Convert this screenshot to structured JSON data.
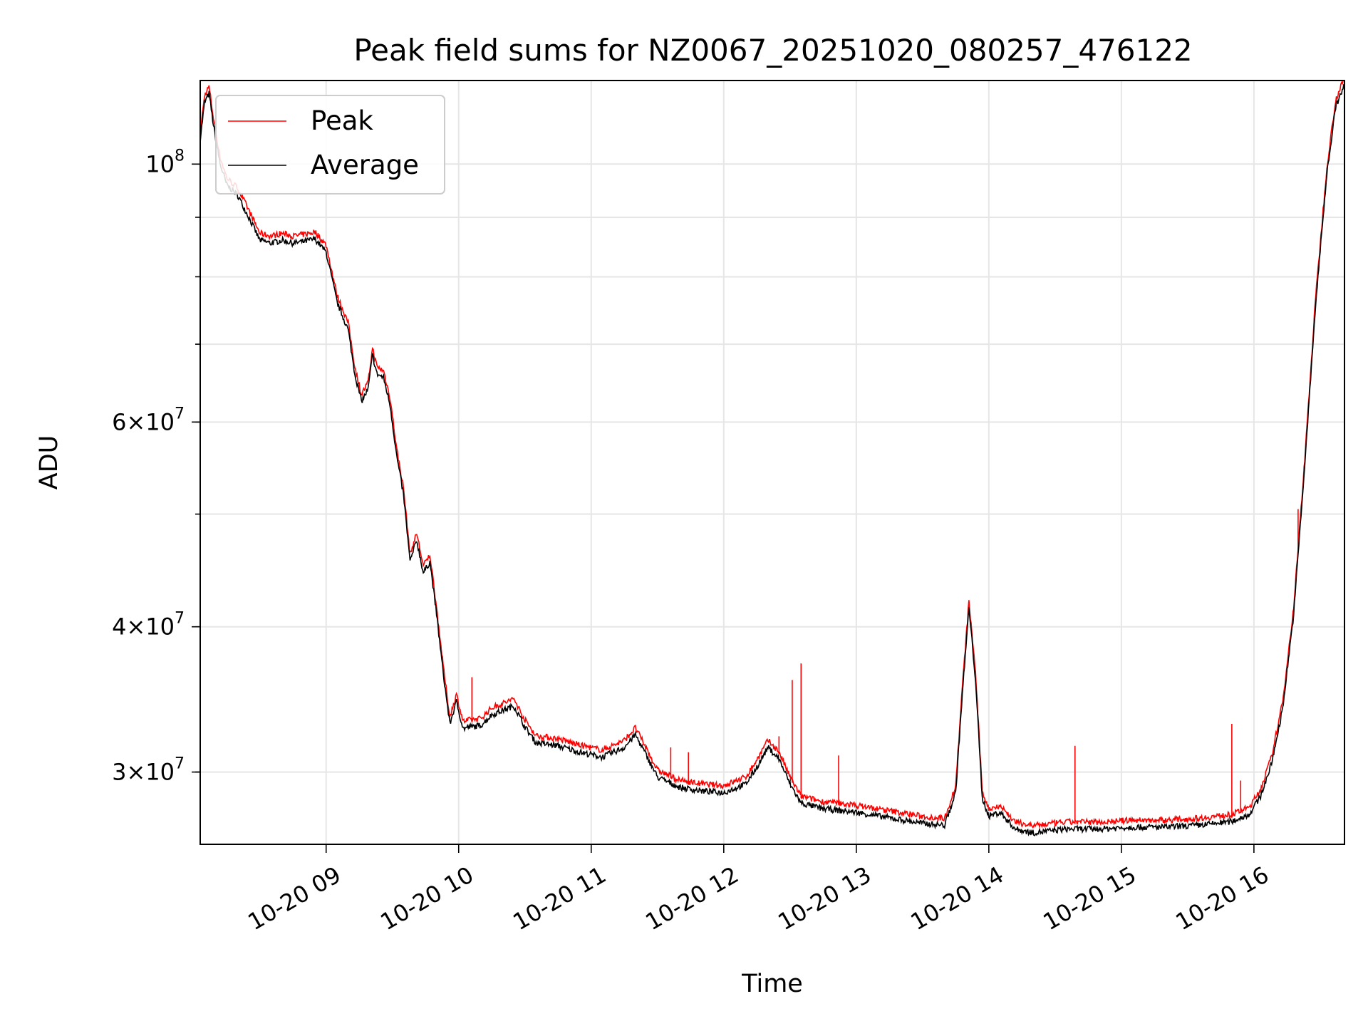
{
  "chart_data": {
    "type": "line",
    "title": "Peak field sums for NZ0067_20251020_080257_476122",
    "xlabel": "Time",
    "ylabel": "ADU",
    "xlim": [
      "10-20 08:03",
      "10-20 16:41"
    ],
    "ylim": [
      26000000,
      118000000
    ],
    "yscale": "log",
    "grid": true,
    "legend_position": "top-left",
    "x_tick_labels": [
      "10-20 09",
      "10-20 10",
      "10-20 11",
      "10-20 12",
      "10-20 13",
      "10-20 14",
      "10-20 15",
      "10-20 16"
    ],
    "y_tick_labels": [
      {
        "value": 30000000,
        "mantissa": "3",
        "base": "10",
        "exp": "7"
      },
      {
        "value": 40000000,
        "mantissa": "4",
        "base": "10",
        "exp": "7"
      },
      {
        "value": 60000000,
        "mantissa": "6",
        "base": "10",
        "exp": "7"
      },
      {
        "value": 100000000,
        "mantissa": "",
        "base": "10",
        "exp": "8"
      }
    ],
    "series": [
      {
        "name": "Peak",
        "color": "#ff0000",
        "spikes": [
          {
            "x": "10-20 10:06",
            "y": 36200000
          },
          {
            "x": "10-20 11:36",
            "y": 31500000
          },
          {
            "x": "10-20 11:44",
            "y": 31200000
          },
          {
            "x": "10-20 12:25",
            "y": 32200000
          },
          {
            "x": "10-20 12:31",
            "y": 36000000
          },
          {
            "x": "10-20 12:35",
            "y": 37200000
          },
          {
            "x": "10-20 12:52",
            "y": 31000000
          },
          {
            "x": "10-20 14:39",
            "y": 31600000
          },
          {
            "x": "10-20 15:50",
            "y": 33000000
          },
          {
            "x": "10-20 15:54",
            "y": 29500000
          },
          {
            "x": "10-20 16:20",
            "y": 50500000
          }
        ]
      },
      {
        "name": "Average",
        "color": "#000000",
        "points": [
          [
            "10-20 08:03",
            105000000
          ],
          [
            "10-20 08:05",
            113000000
          ],
          [
            "10-20 08:07",
            115000000
          ],
          [
            "10-20 08:09",
            108000000
          ],
          [
            "10-20 08:12",
            100000000
          ],
          [
            "10-20 08:15",
            96000000
          ],
          [
            "10-20 08:20",
            94000000
          ],
          [
            "10-20 08:25",
            90000000
          ],
          [
            "10-20 08:30",
            86000000
          ],
          [
            "10-20 08:35",
            85500000
          ],
          [
            "10-20 08:40",
            86000000
          ],
          [
            "10-20 08:45",
            85500000
          ],
          [
            "10-20 08:50",
            85800000
          ],
          [
            "10-20 08:55",
            86200000
          ],
          [
            "10-20 09:00",
            84000000
          ],
          [
            "10-20 09:05",
            76000000
          ],
          [
            "10-20 09:10",
            72000000
          ],
          [
            "10-20 09:13",
            66000000
          ],
          [
            "10-20 09:16",
            62500000
          ],
          [
            "10-20 09:19",
            64000000
          ],
          [
            "10-20 09:21",
            68500000
          ],
          [
            "10-20 09:23",
            66000000
          ],
          [
            "10-20 09:26",
            65500000
          ],
          [
            "10-20 09:29",
            62000000
          ],
          [
            "10-20 09:32",
            56000000
          ],
          [
            "10-20 09:35",
            52000000
          ],
          [
            "10-20 09:38",
            45500000
          ],
          [
            "10-20 09:41",
            47500000
          ],
          [
            "10-20 09:44",
            44500000
          ],
          [
            "10-20 09:47",
            45500000
          ],
          [
            "10-20 09:50",
            41000000
          ],
          [
            "10-20 09:53",
            36500000
          ],
          [
            "10-20 09:56",
            33000000
          ],
          [
            "10-20 09:59",
            34500000
          ],
          [
            "10-20 10:02",
            32700000
          ],
          [
            "10-20 10:05",
            32800000
          ],
          [
            "10-20 10:10",
            32900000
          ],
          [
            "10-20 10:15",
            33600000
          ],
          [
            "10-20 10:20",
            33900000
          ],
          [
            "10-20 10:25",
            34200000
          ],
          [
            "10-20 10:30",
            32800000
          ],
          [
            "10-20 10:35",
            31800000
          ],
          [
            "10-20 10:45",
            31600000
          ],
          [
            "10-20 10:55",
            31200000
          ],
          [
            "10-20 11:05",
            30900000
          ],
          [
            "10-20 11:15",
            31500000
          ],
          [
            "10-20 11:20",
            32300000
          ],
          [
            "10-20 11:25",
            31000000
          ],
          [
            "10-20 11:30",
            29700000
          ],
          [
            "10-20 11:40",
            29100000
          ],
          [
            "10-20 11:50",
            28900000
          ],
          [
            "10-20 12:00",
            28800000
          ],
          [
            "10-20 12:10",
            29300000
          ],
          [
            "10-20 12:15",
            30300000
          ],
          [
            "10-20 12:20",
            31500000
          ],
          [
            "10-20 12:25",
            30800000
          ],
          [
            "10-20 12:30",
            29300000
          ],
          [
            "10-20 12:35",
            28200000
          ],
          [
            "10-20 12:45",
            27900000
          ],
          [
            "10-20 13:00",
            27700000
          ],
          [
            "10-20 13:10",
            27500000
          ],
          [
            "10-20 13:20",
            27300000
          ],
          [
            "10-20 13:30",
            27100000
          ],
          [
            "10-20 13:40",
            27000000
          ],
          [
            "10-20 13:45",
            28800000
          ],
          [
            "10-20 13:48",
            35000000
          ],
          [
            "10-20 13:51",
            41500000
          ],
          [
            "10-20 13:54",
            36000000
          ],
          [
            "10-20 13:57",
            28500000
          ],
          [
            "10-20 14:00",
            27500000
          ],
          [
            "10-20 14:05",
            27700000
          ],
          [
            "10-20 14:12",
            26800000
          ],
          [
            "10-20 14:20",
            26600000
          ],
          [
            "10-20 14:35",
            26800000
          ],
          [
            "10-20 14:50",
            26800000
          ],
          [
            "10-20 15:05",
            26900000
          ],
          [
            "10-20 15:20",
            26900000
          ],
          [
            "10-20 15:35",
            27000000
          ],
          [
            "10-20 15:50",
            27200000
          ],
          [
            "10-20 15:58",
            27600000
          ],
          [
            "10-20 16:03",
            28600000
          ],
          [
            "10-20 16:08",
            30500000
          ],
          [
            "10-20 16:13",
            34000000
          ],
          [
            "10-20 16:18",
            41000000
          ],
          [
            "10-20 16:23",
            55000000
          ],
          [
            "10-20 16:28",
            76000000
          ],
          [
            "10-20 16:33",
            98000000
          ],
          [
            "10-20 16:37",
            112000000
          ],
          [
            "10-20 16:41",
            117000000
          ]
        ]
      }
    ]
  }
}
